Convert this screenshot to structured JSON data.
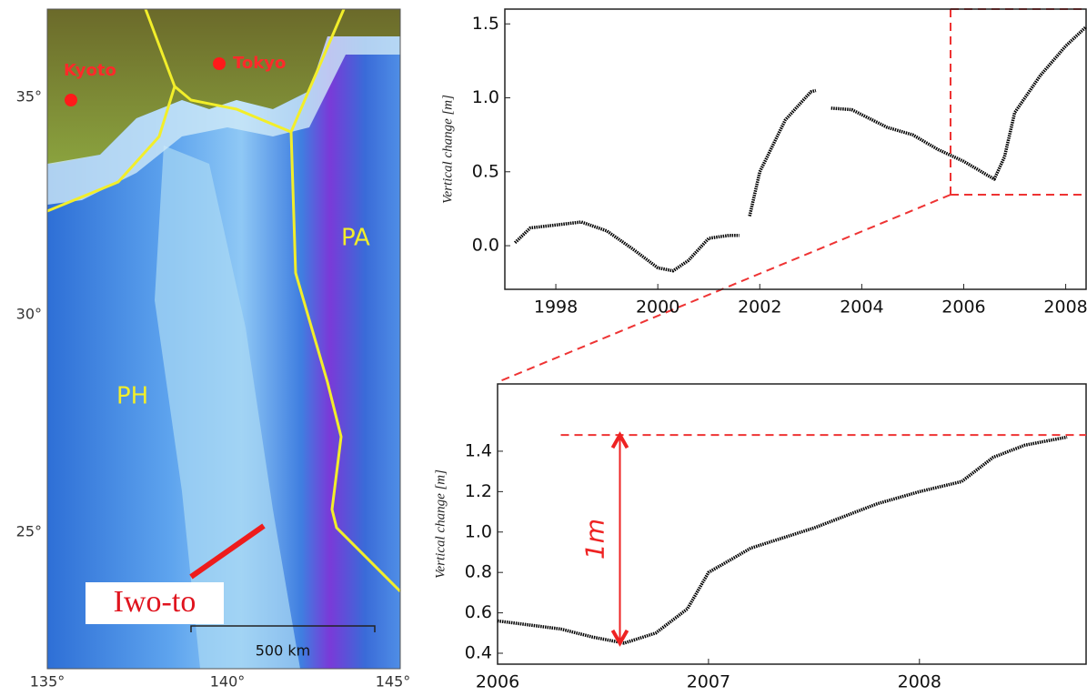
{
  "map": {
    "place_labels": [
      "Kyoto",
      "Tokyo"
    ],
    "plate_labels": [
      "PA",
      "PH"
    ],
    "site_label": "Iwo-to",
    "scale_label": "500 km",
    "lat_ticks": [
      {
        "value": 35,
        "label": "35°"
      },
      {
        "value": 30,
        "label": "30°"
      },
      {
        "value": 25,
        "label": "25°"
      }
    ],
    "lon_ticks": [
      {
        "value": 135,
        "label": "135°"
      },
      {
        "value": 140,
        "label": "140°"
      },
      {
        "value": 145,
        "label": "145°"
      }
    ]
  },
  "chart_data": [
    {
      "type": "line",
      "ylabel": "Vertical change [m]",
      "color": "#000000",
      "x": [
        1997.2,
        1997.5,
        1998,
        1998.5,
        1999,
        1999.5,
        2000,
        2000.3,
        2000.6,
        2001,
        2001.4,
        2001.6,
        2001.7,
        2001.8,
        2002,
        2002.5,
        2003,
        2003.1,
        2003.25,
        2003.4,
        2003.8,
        2004.5,
        2005,
        2005.5,
        2006,
        2006.5,
        2006.6,
        2006.8,
        2007,
        2007.5,
        2008,
        2008.4
      ],
      "values": [
        0.02,
        0.12,
        0.14,
        0.16,
        0.1,
        -0.02,
        -0.15,
        -0.17,
        -0.1,
        0.05,
        0.07,
        0.07,
        null,
        0.2,
        0.5,
        0.85,
        1.04,
        1.05,
        null,
        0.93,
        0.92,
        0.8,
        0.75,
        0.65,
        0.57,
        0.47,
        0.45,
        0.6,
        0.9,
        1.15,
        1.35,
        1.48
      ],
      "xlim": [
        1997,
        2008.4
      ],
      "ylim": [
        -0.295,
        1.6
      ],
      "xticks": [
        1998,
        2000,
        2002,
        2004,
        2006,
        2008
      ],
      "yticks": [
        {
          "value": 0,
          "label": "0.0"
        },
        0.5,
        {
          "value": 1,
          "label": "1.0"
        },
        1.5
      ]
    },
    {
      "type": "line",
      "ylabel": "Vertical change [m]",
      "color": "#000000",
      "x": [
        2006,
        2006.15,
        2006.3,
        2006.45,
        2006.6,
        2006.75,
        2006.9,
        2007,
        2007.2,
        2007.5,
        2007.8,
        2008,
        2008.2,
        2008.35,
        2008.5,
        2008.7
      ],
      "values": [
        0.56,
        0.54,
        0.52,
        0.48,
        0.45,
        0.5,
        0.62,
        0.8,
        0.92,
        1.02,
        1.14,
        1.2,
        1.25,
        1.37,
        1.43,
        1.47
      ],
      "xlim": [
        2006,
        2008.79
      ],
      "ylim": [
        0.346,
        1.733
      ],
      "xticks": [
        2006,
        2007,
        2008
      ],
      "yticks": [
        0.4,
        0.6,
        0.8,
        {
          "value": 1,
          "label": "1.0"
        },
        1.2,
        1.4
      ],
      "annotation": {
        "text": "1m",
        "x": 2006.58,
        "y_from": 0.45,
        "y_to": 1.48
      }
    }
  ]
}
